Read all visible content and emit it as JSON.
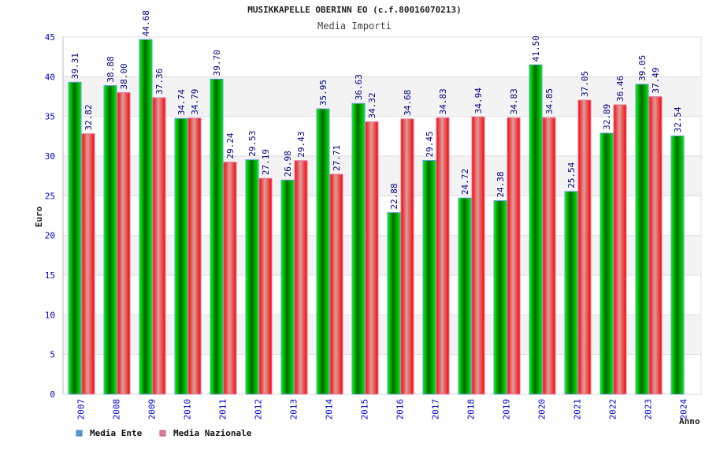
{
  "chart_data": {
    "type": "bar",
    "title": "MUSIKKAPELLE OBERINN EO (c.f.80016070213)",
    "subtitle": "Media Importi",
    "xlabel": "Anno",
    "ylabel": "Euro",
    "ylim": [
      0,
      45
    ],
    "yticks": [
      0,
      5,
      10,
      15,
      20,
      25,
      30,
      35,
      40,
      45
    ],
    "grid": true,
    "legend_position": "bottom-left",
    "categories": [
      "2007",
      "2008",
      "2009",
      "2010",
      "2011",
      "2012",
      "2013",
      "2014",
      "2015",
      "2016",
      "2017",
      "2018",
      "2019",
      "2020",
      "2021",
      "2022",
      "2023",
      "2024"
    ],
    "series": [
      {
        "name": "Media Ente",
        "color": "#00b000",
        "legend_color": "#5b9bd5",
        "values": [
          39.31,
          38.88,
          44.68,
          34.74,
          39.7,
          29.53,
          26.98,
          35.95,
          36.63,
          22.88,
          29.45,
          24.72,
          24.38,
          41.5,
          25.54,
          32.89,
          39.05,
          32.54
        ],
        "labels": [
          "39.31",
          "38.88",
          "44.68",
          "34.74",
          "39.70",
          "29.53",
          "26.98",
          "35.95",
          "36.63",
          "22.88",
          "29.45",
          "24.72",
          "24.38",
          "41.50",
          "25.54",
          "32.89",
          "39.05",
          "32.54"
        ]
      },
      {
        "name": "Media Nazionale",
        "color": "#ff2020",
        "legend_color": "#e07ca0",
        "values": [
          32.82,
          38.0,
          37.36,
          34.79,
          29.24,
          27.19,
          29.43,
          27.71,
          34.32,
          34.68,
          34.83,
          34.94,
          34.83,
          34.85,
          37.05,
          36.46,
          37.49,
          null
        ],
        "labels": [
          "32.82",
          "38.00",
          "37.36",
          "34.79",
          "29.24",
          "27.19",
          "29.43",
          "27.71",
          "34.32",
          "34.68",
          "34.83",
          "34.94",
          "34.83",
          "34.85",
          "37.05",
          "36.46",
          "37.49",
          null
        ]
      }
    ]
  }
}
